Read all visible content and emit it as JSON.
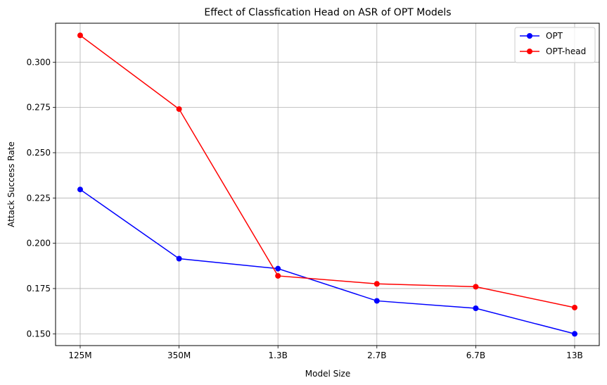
{
  "chart_data": {
    "type": "line",
    "title": "Effect of Classfication Head on ASR of OPT Models",
    "xlabel": "Model Size",
    "ylabel": "Attack Success Rate",
    "categories": [
      "125M",
      "350M",
      "1.3B",
      "2.7B",
      "6.7B",
      "13B"
    ],
    "series": [
      {
        "name": "OPT",
        "color": "#0000ff",
        "values": [
          0.2297,
          0.1915,
          0.186,
          0.1682,
          0.1641,
          0.15
        ]
      },
      {
        "name": "OPT-head",
        "color": "#ff0000",
        "values": [
          0.3148,
          0.2741,
          0.182,
          0.1776,
          0.176,
          0.1645
        ]
      }
    ],
    "ylim": [
      0.1435,
      0.3215
    ],
    "yticks": [
      0.15,
      0.175,
      0.2,
      0.225,
      0.25,
      0.275,
      0.3
    ],
    "ytick_labels": [
      "0.150",
      "0.175",
      "0.200",
      "0.225",
      "0.250",
      "0.275",
      "0.300"
    ],
    "grid": true,
    "legend_position": "top-right"
  }
}
